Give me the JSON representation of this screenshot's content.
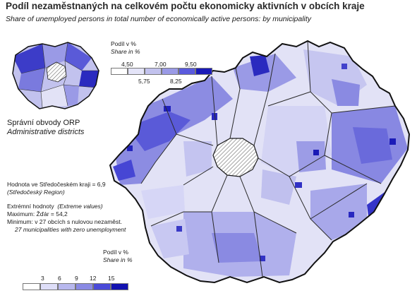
{
  "title": "Podíl nezaměstnaných na celkovém počtu ekonomicky aktivních v obcích kraje",
  "subtitle": "Share of unemployed persons in total number of economically active persons: by municipality",
  "districts_legend": {
    "heading_cz": "Podíl v %",
    "heading_en": "Share in %",
    "upper_labels": [
      "4,50",
      "7,00",
      "9,50"
    ],
    "lower_labels": [
      "5,75",
      "8,25"
    ],
    "colors": [
      "#ffffff",
      "#e4e4f8",
      "#c2c2ee",
      "#9a9ae6",
      "#5a5add",
      "#1a1ab8"
    ]
  },
  "orp": {
    "cz": "Správní obvody  ORP",
    "en": "Administrative districts"
  },
  "stats": {
    "region_value": "Hodnota ve Středočeském kraji = 6,9",
    "region_en": "(Středočeský Region)",
    "extremes_cz": "Extrémní hodnoty",
    "extremes_en": "(Extreme values)",
    "maximum": "Maximum:  Žďár = 54,2",
    "minimum": "Minimum:  v 27 obcích s nulovou nezaměst.",
    "minimum_en": "27 municipalities with zero unemployment"
  },
  "municipal_legend": {
    "heading_cz": "Podíl v %",
    "heading_en": "Share in %",
    "labels": [
      "3",
      "6",
      "9",
      "12",
      "15"
    ],
    "colors": [
      "#ffffff",
      "#dedef8",
      "#b8b8ee",
      "#8a8ae4",
      "#4a4ad8",
      "#1212b0"
    ]
  },
  "map_colors": {
    "light": "#e2e2f6",
    "mid_light": "#c0c0ee",
    "mid": "#9494e4",
    "dark": "#5252d8",
    "darkest": "#1414b4",
    "prague_hatch": "#7a7a7a",
    "border": "#1a1a1a"
  }
}
